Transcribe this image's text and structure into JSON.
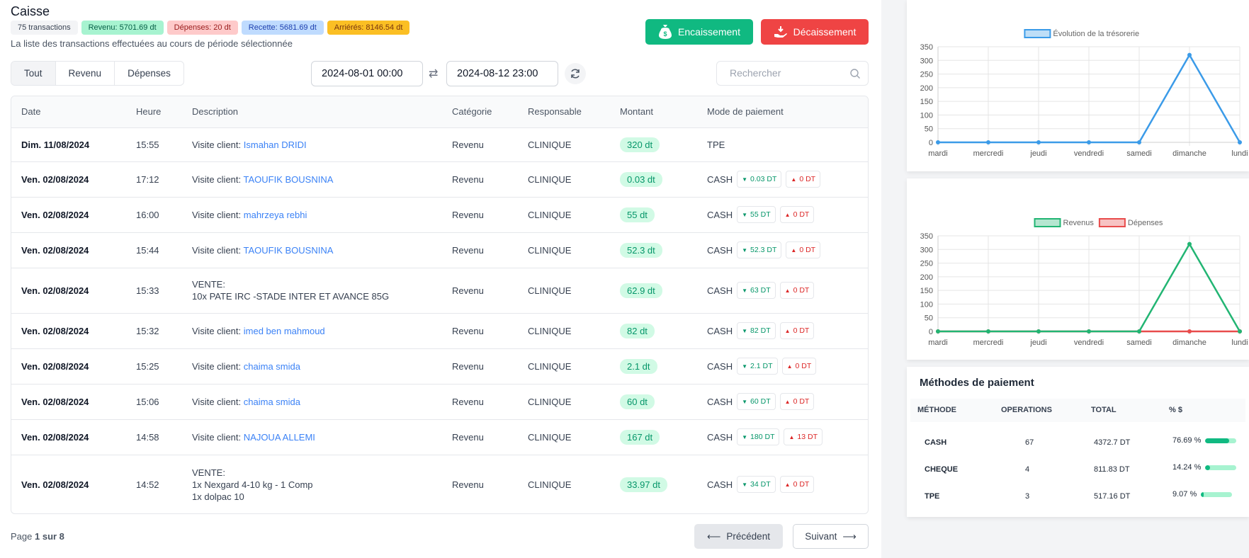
{
  "page": {
    "title": "Caisse",
    "subtitle": "La liste des transactions effectuées au cours de période sélectionnée"
  },
  "badges": [
    {
      "label": "75 transactions",
      "bg": "#f3f4f6",
      "color": "#374151"
    },
    {
      "label": "Revenu: 5701.69 dt",
      "bg": "#a7f3d0",
      "color": "#065f46"
    },
    {
      "label": "Dépenses: 20 dt",
      "bg": "#fecaca",
      "color": "#991b1b"
    },
    {
      "label": "Recette: 5681.69 dt",
      "bg": "#bfdbfe",
      "color": "#1e40af"
    },
    {
      "label": "Arriérés: 8146.54 dt",
      "bg": "#fbbf24",
      "color": "#78350f"
    }
  ],
  "actions": {
    "encaissement": "Encaissement",
    "decaissement": "Décaissement"
  },
  "tabs": [
    {
      "label": "Tout",
      "active": true
    },
    {
      "label": "Revenu",
      "active": false
    },
    {
      "label": "Dépenses",
      "active": false
    }
  ],
  "filters": {
    "date_from": "2024-08-01 00:00",
    "date_to": "2024-08-12 23:00",
    "search_placeholder": "Rechercher"
  },
  "table": {
    "headers": [
      "Date",
      "Heure",
      "Description",
      "Catégorie",
      "Responsable",
      "Montant",
      "Mode de paiement"
    ],
    "rows": [
      {
        "date": "Dim. 11/08/2024",
        "time": "15:55",
        "desc_prefix": "Visite client:",
        "desc_link": "Ismahan DRIDI",
        "desc_lines": [],
        "category": "Revenu",
        "responsible": "CLINIQUE",
        "amount": "320 dt",
        "mode": "TPE",
        "in": "",
        "out": ""
      },
      {
        "date": "Ven. 02/08/2024",
        "time": "17:12",
        "desc_prefix": "Visite client:",
        "desc_link": "TAOUFIK BOUSNINA",
        "desc_lines": [],
        "category": "Revenu",
        "responsible": "CLINIQUE",
        "amount": "0.03 dt",
        "mode": "CASH",
        "in": "0.03 DT",
        "out": "0 DT"
      },
      {
        "date": "Ven. 02/08/2024",
        "time": "16:00",
        "desc_prefix": "Visite client:",
        "desc_link": "mahrzeya rebhi",
        "desc_lines": [],
        "category": "Revenu",
        "responsible": "CLINIQUE",
        "amount": "55 dt",
        "mode": "CASH",
        "in": "55 DT",
        "out": "0 DT"
      },
      {
        "date": "Ven. 02/08/2024",
        "time": "15:44",
        "desc_prefix": "Visite client:",
        "desc_link": "TAOUFIK BOUSNINA",
        "desc_lines": [],
        "category": "Revenu",
        "responsible": "CLINIQUE",
        "amount": "52.3 dt",
        "mode": "CASH",
        "in": "52.3 DT",
        "out": "0 DT"
      },
      {
        "date": "Ven. 02/08/2024",
        "time": "15:33",
        "desc_prefix": "",
        "desc_link": "",
        "desc_lines": [
          "VENTE:",
          "10x PATE IRC -STADE INTER ET AVANCE 85G"
        ],
        "category": "Revenu",
        "responsible": "CLINIQUE",
        "amount": "62.9 dt",
        "mode": "CASH",
        "in": "63 DT",
        "out": "0 DT"
      },
      {
        "date": "Ven. 02/08/2024",
        "time": "15:32",
        "desc_prefix": "Visite client:",
        "desc_link": "imed ben mahmoud",
        "desc_lines": [],
        "category": "Revenu",
        "responsible": "CLINIQUE",
        "amount": "82 dt",
        "mode": "CASH",
        "in": "82 DT",
        "out": "0 DT"
      },
      {
        "date": "Ven. 02/08/2024",
        "time": "15:25",
        "desc_prefix": "Visite client:",
        "desc_link": "chaima smida",
        "desc_lines": [],
        "category": "Revenu",
        "responsible": "CLINIQUE",
        "amount": "2.1 dt",
        "mode": "CASH",
        "in": "2.1 DT",
        "out": "0 DT"
      },
      {
        "date": "Ven. 02/08/2024",
        "time": "15:06",
        "desc_prefix": "Visite client:",
        "desc_link": "chaima smida",
        "desc_lines": [],
        "category": "Revenu",
        "responsible": "CLINIQUE",
        "amount": "60 dt",
        "mode": "CASH",
        "in": "60 DT",
        "out": "0 DT"
      },
      {
        "date": "Ven. 02/08/2024",
        "time": "14:58",
        "desc_prefix": "Visite client:",
        "desc_link": "NAJOUA ALLEMI",
        "desc_lines": [],
        "category": "Revenu",
        "responsible": "CLINIQUE",
        "amount": "167 dt",
        "mode": "CASH",
        "in": "180 DT",
        "out": "13 DT"
      },
      {
        "date": "Ven. 02/08/2024",
        "time": "14:52",
        "desc_prefix": "",
        "desc_link": "",
        "desc_lines": [
          "VENTE:",
          "1x Nexgard 4-10 kg - 1 Comp",
          "1x dolpac 10"
        ],
        "category": "Revenu",
        "responsible": "CLINIQUE",
        "amount": "33.97 dt",
        "mode": "CASH",
        "in": "34 DT",
        "out": "0 DT"
      }
    ]
  },
  "pagination": {
    "prefix": "Page",
    "current": "1 sur 8",
    "prev": "Précédent",
    "next": "Suivant"
  },
  "payment_methods": {
    "title": "Méthodes de paiement",
    "headers": [
      "MÉTHODE",
      "OPERATIONS",
      "TOTAL",
      "% $"
    ],
    "rows": [
      {
        "method": "CASH",
        "operations": "67",
        "total": "4372.7 DT",
        "percent": "76.69 %",
        "fraction": 0.7669
      },
      {
        "method": "CHEQUE",
        "operations": "4",
        "total": "811.83 DT",
        "percent": "14.24 %",
        "fraction": 0.1424
      },
      {
        "method": "TPE",
        "operations": "3",
        "total": "517.16 DT",
        "percent": "9.07 %",
        "fraction": 0.0907
      }
    ]
  },
  "chart_data": [
    {
      "type": "line",
      "title": "",
      "categories": [
        "mardi",
        "mercredi",
        "jeudi",
        "vendredi",
        "samedi",
        "dimanche",
        "lundi"
      ],
      "series": [
        {
          "name": "Évolution de la trésorerie",
          "values": [
            0,
            0,
            0,
            0,
            0,
            320,
            0
          ],
          "color": "#3b9be8"
        }
      ],
      "ylim": [
        0,
        350
      ],
      "yticks": [
        0,
        50,
        100,
        150,
        200,
        250,
        300,
        350
      ],
      "grid": true,
      "legend": "top"
    },
    {
      "type": "line",
      "title": "",
      "categories": [
        "mardi",
        "mercredi",
        "jeudi",
        "vendredi",
        "samedi",
        "dimanche",
        "lundi"
      ],
      "series": [
        {
          "name": "Revenus",
          "values": [
            0,
            0,
            0,
            0,
            0,
            320,
            0
          ],
          "color": "#22b573"
        },
        {
          "name": "Dépenses",
          "values": [
            0,
            0,
            0,
            0,
            0,
            0,
            0
          ],
          "color": "#e84c4c"
        }
      ],
      "ylim": [
        0,
        350
      ],
      "yticks": [
        0,
        50,
        100,
        150,
        200,
        250,
        300,
        350
      ],
      "grid": true,
      "legend": "top"
    }
  ]
}
